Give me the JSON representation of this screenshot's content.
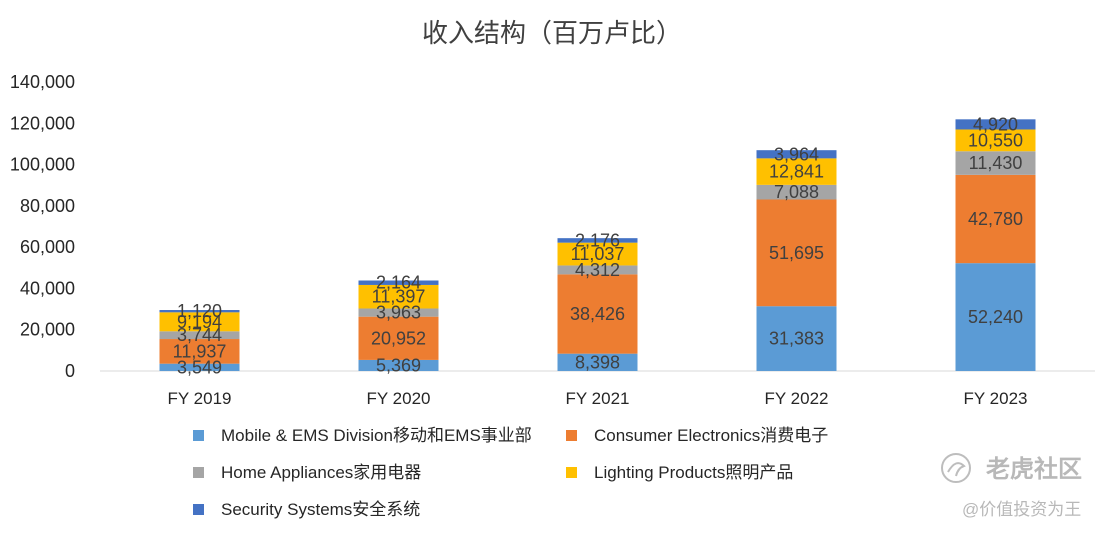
{
  "chart_data": {
    "type": "bar",
    "stacked": true,
    "title": "收入结构（百万卢比）",
    "categories": [
      "FY 2019",
      "FY 2020",
      "FY 2021",
      "FY 2022",
      "FY 2023"
    ],
    "ylim": [
      0,
      140000
    ],
    "yticks": [
      0,
      20000,
      40000,
      60000,
      80000,
      100000,
      120000,
      140000
    ],
    "ytick_labels": [
      "0",
      "20,000",
      "40,000",
      "60,000",
      "80,000",
      "100,000",
      "120,000",
      "140,000"
    ],
    "series": [
      {
        "name": "Mobile & EMS Division移动和EMS事业部",
        "color": "#5b9bd5",
        "label_color": "#404040",
        "values": [
          3549,
          5369,
          8398,
          31383,
          52240
        ],
        "labels": [
          "3,549",
          "5,369",
          "8,398",
          "31,383",
          "52,240"
        ]
      },
      {
        "name": "Consumer Electronics消费电子",
        "color": "#ed7d31",
        "label_color": "#404040",
        "values": [
          11937,
          20952,
          38426,
          51695,
          42780
        ],
        "labels": [
          "11,937",
          "20,952",
          "38,426",
          "51,695",
          "42,780"
        ]
      },
      {
        "name": "Home Appliances家用电器",
        "color": "#a5a5a5",
        "label_color": "#404040",
        "values": [
          3744,
          3963,
          4312,
          7088,
          11430
        ],
        "labels": [
          "3,744",
          "3,963",
          "4,312",
          "7,088",
          "11,430"
        ]
      },
      {
        "name": "Lighting Products照明产品",
        "color": "#ffc000",
        "label_color": "#404040",
        "values": [
          9194,
          11397,
          11037,
          12841,
          10550
        ],
        "labels": [
          "9,194",
          "11,397",
          "11,037",
          "12,841",
          "10,550"
        ]
      },
      {
        "name": "Security Systems安全系统",
        "color": "#4472c4",
        "label_color": "#404040",
        "values": [
          1120,
          2164,
          2176,
          3964,
          4920
        ],
        "labels": [
          "1,120",
          "2,164",
          "2,176",
          "3,964",
          "4,920"
        ]
      }
    ]
  },
  "watermark": {
    "brand": "老虎社区",
    "handle": "@价值投资为王"
  }
}
